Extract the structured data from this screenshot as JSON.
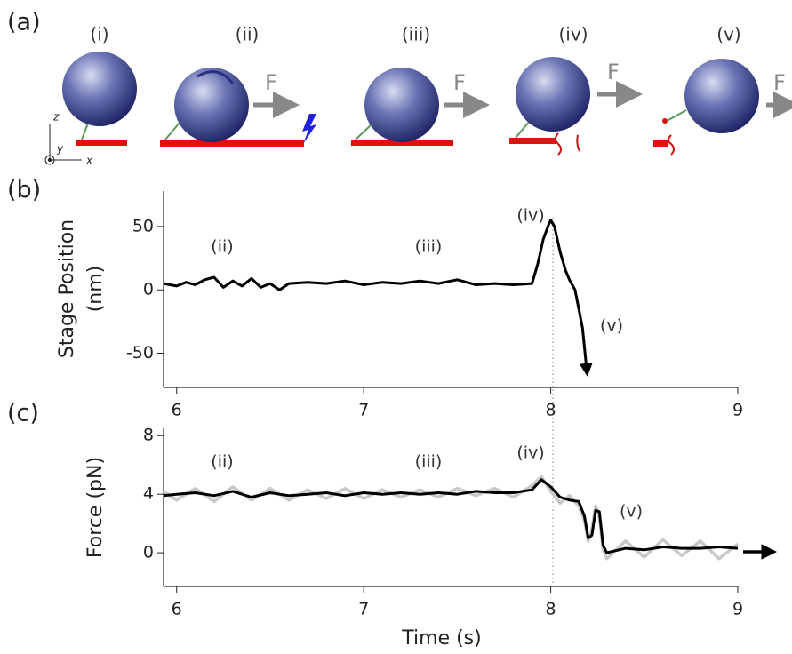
{
  "diagram": {
    "panel_label": "(a)",
    "steps": [
      "(i)",
      "(ii)",
      "(iii)",
      "(iv)",
      "(v)"
    ],
    "force": "F",
    "axes": [
      "z",
      "y",
      "x"
    ]
  },
  "chart_data": [
    {
      "type": "line",
      "panel_label": "(b)",
      "ylabel": [
        "Stage Position",
        "(nm)"
      ],
      "annotations": [
        "(ii)",
        "(iii)",
        "(iv)",
        "(v)"
      ],
      "x": [
        5.93,
        6.0,
        6.05,
        6.1,
        6.15,
        6.2,
        6.25,
        6.3,
        6.35,
        6.4,
        6.45,
        6.5,
        6.55,
        6.6,
        6.7,
        6.8,
        6.9,
        7.0,
        7.1,
        7.2,
        7.3,
        7.4,
        7.5,
        7.6,
        7.7,
        7.8,
        7.9,
        7.93,
        7.96,
        7.99,
        8.0,
        8.02,
        8.05,
        8.08,
        8.1,
        8.13,
        8.15,
        8.17,
        8.19
      ],
      "series": [
        {
          "color": "#000000",
          "values": [
            5,
            3,
            6,
            4,
            8,
            10,
            2,
            7,
            3,
            9,
            2,
            5,
            0,
            5,
            6,
            5,
            7,
            4,
            6,
            5,
            7,
            5,
            8,
            4,
            5,
            4,
            5,
            20,
            40,
            52,
            55,
            50,
            30,
            15,
            8,
            0,
            -15,
            -30,
            -60
          ]
        }
      ],
      "xlim": [
        5.93,
        9.0
      ],
      "xticks": [
        6,
        7,
        8,
        9
      ],
      "ylim": [
        -77,
        78
      ],
      "yticks": [
        -50,
        0,
        50
      ]
    },
    {
      "type": "line",
      "panel_label": "(c)",
      "ylabel": [
        "Force (pN)"
      ],
      "xlabel": "Time (s)",
      "annotations": [
        "(ii)",
        "(iii)",
        "(iv)",
        "(v)"
      ],
      "x": [
        5.93,
        6.0,
        6.1,
        6.2,
        6.3,
        6.4,
        6.5,
        6.6,
        6.7,
        6.8,
        6.9,
        7.0,
        7.1,
        7.2,
        7.3,
        7.4,
        7.5,
        7.6,
        7.7,
        7.8,
        7.9,
        7.95,
        8.0,
        8.05,
        8.1,
        8.15,
        8.18,
        8.2,
        8.22,
        8.24,
        8.26,
        8.28,
        8.3,
        8.4,
        8.5,
        8.6,
        8.7,
        8.8,
        8.9,
        9.0
      ],
      "series": [
        {
          "color": "#c8c8c8",
          "values": [
            4.2,
            3.6,
            4.4,
            3.5,
            4.5,
            3.6,
            4.4,
            3.6,
            4.3,
            3.7,
            4.4,
            3.7,
            4.3,
            3.8,
            4.3,
            3.8,
            4.4,
            3.9,
            4.4,
            3.8,
            4.6,
            5.2,
            4.2,
            3.4,
            3.9,
            3.2,
            2.2,
            0.8,
            1.6,
            3.2,
            2.4,
            0.2,
            -0.4,
            0.8,
            -0.3,
            0.9,
            -0.2,
            0.8,
            -0.4,
            0.6
          ]
        },
        {
          "color": "#000000",
          "values": [
            3.9,
            4,
            4.1,
            3.9,
            4.2,
            3.8,
            4.1,
            3.9,
            4,
            4.1,
            3.9,
            4.1,
            4,
            4.1,
            4,
            4.1,
            4,
            4.2,
            4.1,
            4.1,
            4.3,
            5,
            4.5,
            3.8,
            3.6,
            3.5,
            2.5,
            1,
            1.2,
            2.9,
            2.8,
            0.5,
            0,
            0.3,
            0.2,
            0.4,
            0.3,
            0.3,
            0.4,
            0.3
          ]
        }
      ],
      "xlim": [
        5.93,
        9.0
      ],
      "xticks": [
        6,
        7,
        8,
        9
      ],
      "ylim": [
        -2.3,
        8.5
      ],
      "yticks": [
        0,
        4,
        8
      ]
    }
  ]
}
